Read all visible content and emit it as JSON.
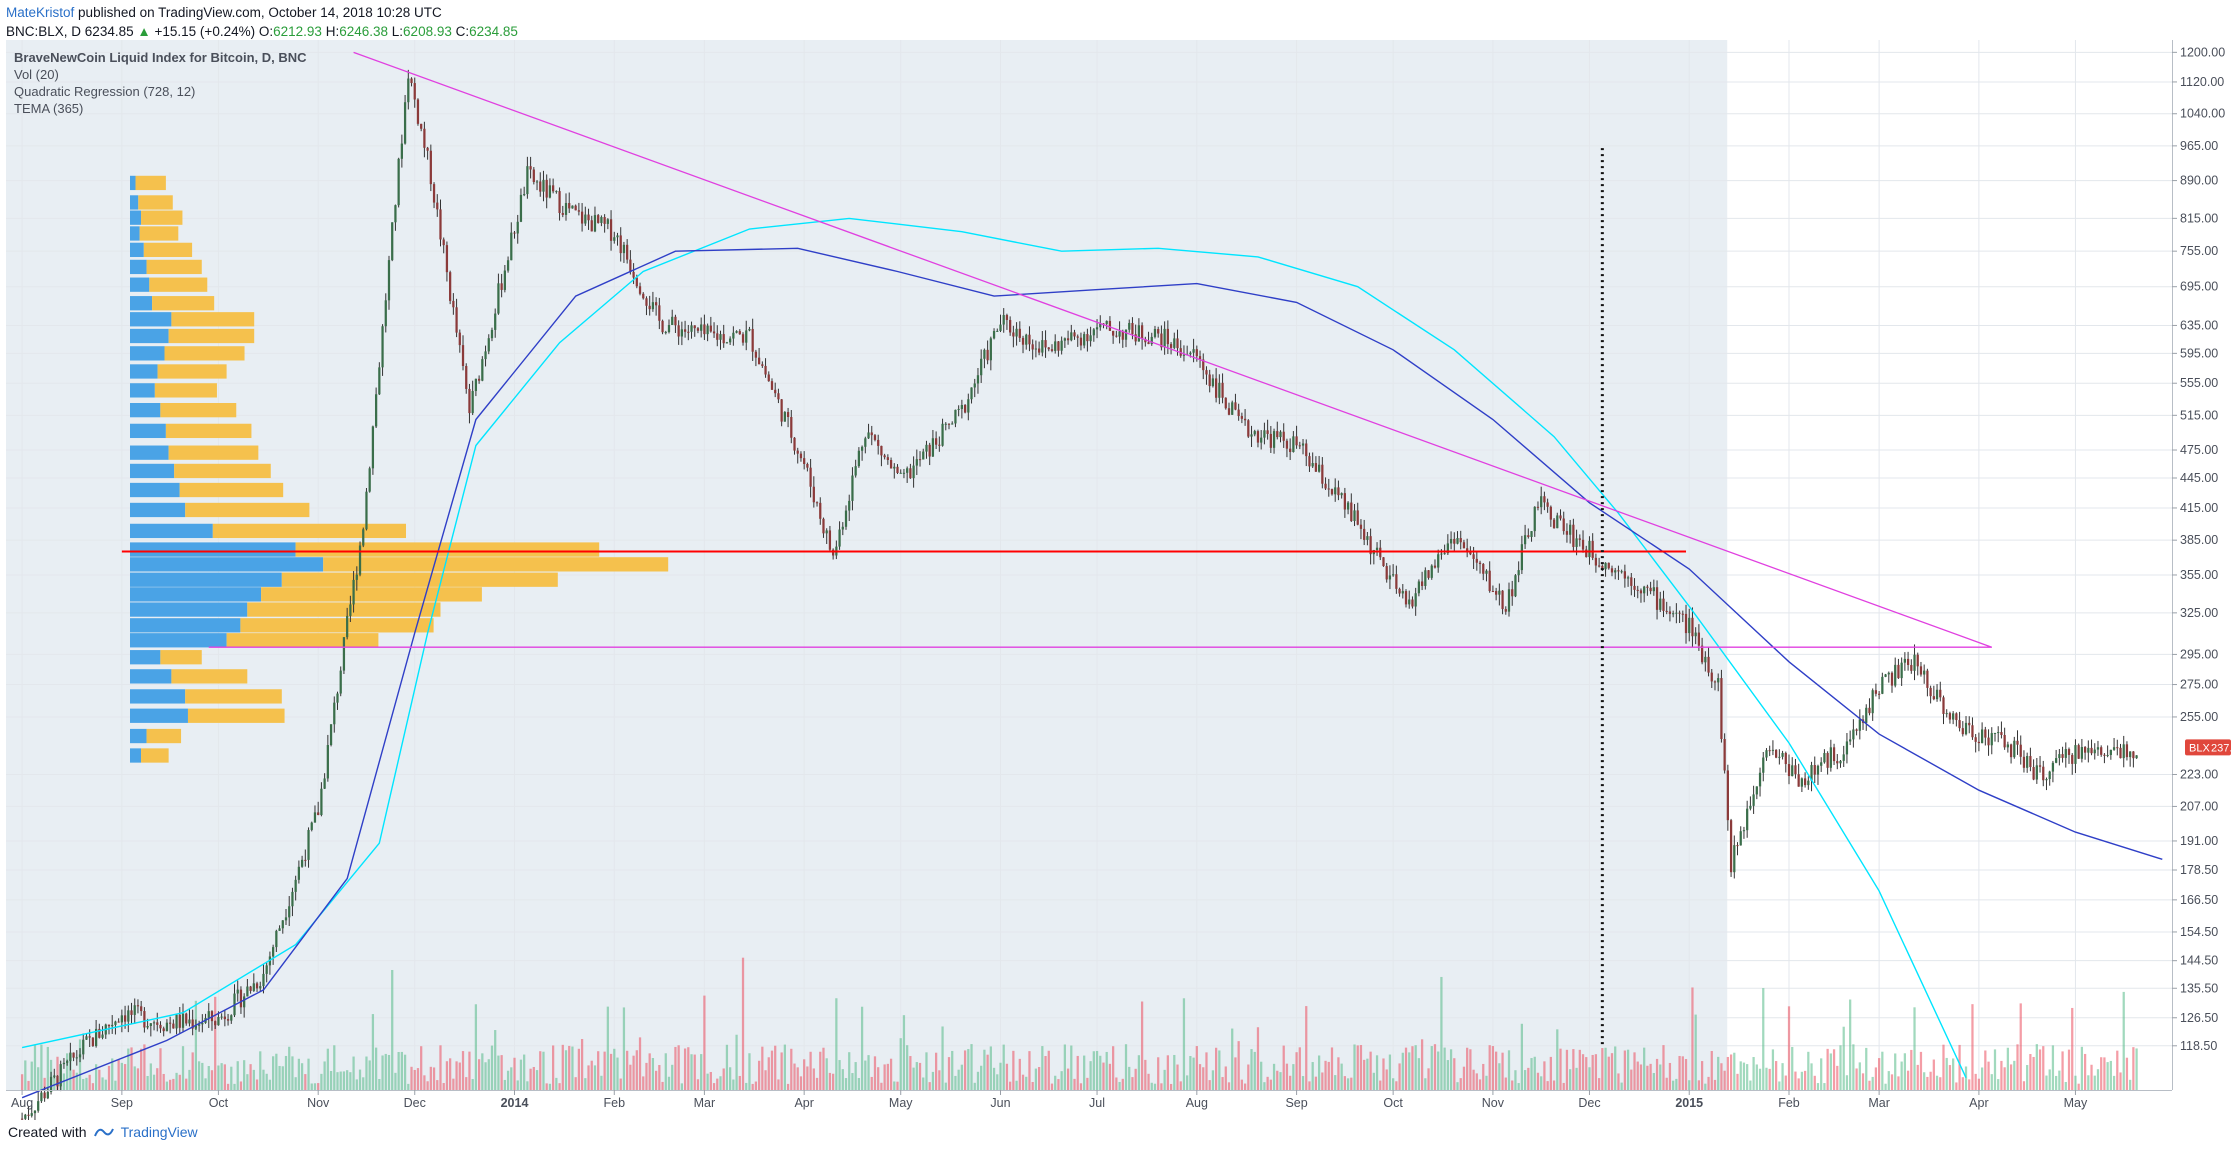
{
  "header": {
    "author": "MateKristof",
    "published": "published on TradingView.com, October 14, 2018 10:28 UTC"
  },
  "ohlc": {
    "symbol": "BNC:BLX, D",
    "last": "6234.85",
    "arrow": "▲",
    "change": "+15.15 (+0.24%)",
    "o_label": "O:",
    "o": "6212.93",
    "h_label": "H:",
    "h": "6246.38",
    "l_label": "L:",
    "l": "6208.93",
    "c_label": "C:",
    "c": "6234.85"
  },
  "footer": {
    "created_with": "Created with",
    "brand": "TradingView"
  },
  "colors": {
    "up": "#53b987",
    "down": "#eb4d5c",
    "candle_up_fill": "#3a6e4a",
    "candle_down_fill": "#8b3a3a",
    "tema": "#00e5ff",
    "regression": "#2f3fc7",
    "trendline": "#e040e0",
    "support": "#ff0000",
    "vp_up": "#4aa3e6",
    "vp_down": "#f5c14d",
    "price_tag": "#e0473c"
  },
  "chart_data": {
    "type": "candlestick",
    "title": "BraveNewCoin Liquid Index for Bitcoin, D, BNC",
    "indicators": [
      "Vol (20)",
      "Quadratic Regression (728, 12)",
      "TEMA (365)"
    ],
    "y_scale": "log",
    "y_ticks": [
      "1200.00",
      "1120.00",
      "1040.00",
      "965.00",
      "890.00",
      "815.00",
      "755.00",
      "695.00",
      "635.00",
      "595.00",
      "555.00",
      "515.00",
      "475.00",
      "445.00",
      "415.00",
      "385.00",
      "355.00",
      "325.00",
      "295.00",
      "275.00",
      "255.00",
      "223.00",
      "207.00",
      "191.00",
      "178.50",
      "166.50",
      "154.50",
      "144.50",
      "135.50",
      "126.50",
      "118.50"
    ],
    "y_tick_values": [
      1200,
      1120,
      1040,
      965,
      890,
      815,
      755,
      695,
      635,
      595,
      555,
      515,
      475,
      445,
      415,
      385,
      355,
      325,
      295,
      275,
      255,
      223,
      207,
      191,
      178.5,
      166.5,
      154.5,
      144.5,
      135.5,
      126.5,
      118.5
    ],
    "x_ticks": [
      {
        "label": "Aug",
        "date": "2013-08-01",
        "bold": false
      },
      {
        "label": "Sep",
        "date": "2013-09-01",
        "bold": false
      },
      {
        "label": "Oct",
        "date": "2013-10-01",
        "bold": false
      },
      {
        "label": "Nov",
        "date": "2013-11-01",
        "bold": false
      },
      {
        "label": "Dec",
        "date": "2013-12-01",
        "bold": false
      },
      {
        "label": "2014",
        "date": "2014-01-01",
        "bold": true
      },
      {
        "label": "Feb",
        "date": "2014-02-01",
        "bold": false
      },
      {
        "label": "Mar",
        "date": "2014-03-01",
        "bold": false
      },
      {
        "label": "Apr",
        "date": "2014-04-01",
        "bold": false
      },
      {
        "label": "May",
        "date": "2014-05-01",
        "bold": false
      },
      {
        "label": "Jun",
        "date": "2014-06-01",
        "bold": false
      },
      {
        "label": "Jul",
        "date": "2014-07-01",
        "bold": false
      },
      {
        "label": "Aug",
        "date": "2014-08-01",
        "bold": false
      },
      {
        "label": "Sep",
        "date": "2014-09-01",
        "bold": false
      },
      {
        "label": "Oct",
        "date": "2014-10-01",
        "bold": false
      },
      {
        "label": "Nov",
        "date": "2014-11-01",
        "bold": false
      },
      {
        "label": "Dec",
        "date": "2014-12-01",
        "bold": false
      },
      {
        "label": "2015",
        "date": "2015-01-01",
        "bold": true
      },
      {
        "label": "Feb",
        "date": "2015-02-01",
        "bold": false
      },
      {
        "label": "Mar",
        "date": "2015-03-01",
        "bold": false
      },
      {
        "label": "Apr",
        "date": "2015-04-01",
        "bold": false
      },
      {
        "label": "May",
        "date": "2015-05-01",
        "bold": false
      }
    ],
    "price_close": [
      {
        "date": "2013-08-01",
        "value": 100
      },
      {
        "date": "2013-08-20",
        "value": 118
      },
      {
        "date": "2013-09-01",
        "value": 128
      },
      {
        "date": "2013-09-15",
        "value": 125
      },
      {
        "date": "2013-10-01",
        "value": 126
      },
      {
        "date": "2013-10-15",
        "value": 140
      },
      {
        "date": "2013-11-01",
        "value": 205
      },
      {
        "date": "2013-11-15",
        "value": 400
      },
      {
        "date": "2013-11-29",
        "value": 1150
      },
      {
        "date": "2013-12-06",
        "value": 900
      },
      {
        "date": "2013-12-18",
        "value": 520
      },
      {
        "date": "2014-01-05",
        "value": 900
      },
      {
        "date": "2014-01-20",
        "value": 820
      },
      {
        "date": "2014-02-01",
        "value": 790
      },
      {
        "date": "2014-02-15",
        "value": 640
      },
      {
        "date": "2014-03-01",
        "value": 620
      },
      {
        "date": "2014-03-15",
        "value": 620
      },
      {
        "date": "2014-04-01",
        "value": 460
      },
      {
        "date": "2014-04-10",
        "value": 370
      },
      {
        "date": "2014-04-20",
        "value": 500
      },
      {
        "date": "2014-05-01",
        "value": 440
      },
      {
        "date": "2014-05-20",
        "value": 520
      },
      {
        "date": "2014-06-01",
        "value": 640
      },
      {
        "date": "2014-06-15",
        "value": 600
      },
      {
        "date": "2014-07-01",
        "value": 630
      },
      {
        "date": "2014-07-20",
        "value": 620
      },
      {
        "date": "2014-08-01",
        "value": 590
      },
      {
        "date": "2014-08-15",
        "value": 500
      },
      {
        "date": "2014-09-01",
        "value": 480
      },
      {
        "date": "2014-09-20",
        "value": 400
      },
      {
        "date": "2014-10-05",
        "value": 330
      },
      {
        "date": "2014-10-20",
        "value": 390
      },
      {
        "date": "2014-11-05",
        "value": 330
      },
      {
        "date": "2014-11-15",
        "value": 420
      },
      {
        "date": "2014-12-01",
        "value": 375
      },
      {
        "date": "2014-12-15",
        "value": 350
      },
      {
        "date": "2015-01-01",
        "value": 315
      },
      {
        "date": "2015-01-10",
        "value": 275
      },
      {
        "date": "2015-01-14",
        "value": 180
      },
      {
        "date": "2015-01-25",
        "value": 240
      },
      {
        "date": "2015-02-05",
        "value": 220
      },
      {
        "date": "2015-02-20",
        "value": 240
      },
      {
        "date": "2015-03-01",
        "value": 275
      },
      {
        "date": "2015-03-12",
        "value": 290
      },
      {
        "date": "2015-03-25",
        "value": 250
      },
      {
        "date": "2015-04-10",
        "value": 240
      },
      {
        "date": "2015-04-20",
        "value": 222
      },
      {
        "date": "2015-05-01",
        "value": 235
      },
      {
        "date": "2015-05-20",
        "value": 237.51
      }
    ],
    "tema_365": [
      {
        "date": "2013-08-01",
        "value": 118
      },
      {
        "date": "2013-09-20",
        "value": 128
      },
      {
        "date": "2013-10-25",
        "value": 150
      },
      {
        "date": "2013-11-20",
        "value": 190
      },
      {
        "date": "2013-12-05",
        "value": 310
      },
      {
        "date": "2013-12-20",
        "value": 480
      },
      {
        "date": "2014-01-15",
        "value": 610
      },
      {
        "date": "2014-02-10",
        "value": 720
      },
      {
        "date": "2014-03-15",
        "value": 795
      },
      {
        "date": "2014-04-15",
        "value": 815
      },
      {
        "date": "2014-05-20",
        "value": 790
      },
      {
        "date": "2014-06-20",
        "value": 755
      },
      {
        "date": "2014-07-20",
        "value": 760
      },
      {
        "date": "2014-08-20",
        "value": 745
      },
      {
        "date": "2014-09-20",
        "value": 695
      },
      {
        "date": "2014-10-20",
        "value": 600
      },
      {
        "date": "2014-11-20",
        "value": 490
      },
      {
        "date": "2014-12-10",
        "value": 410
      },
      {
        "date": "2015-01-01",
        "value": 330
      },
      {
        "date": "2015-02-01",
        "value": 240
      },
      {
        "date": "2015-03-01",
        "value": 170
      },
      {
        "date": "2015-03-28",
        "value": 110
      }
    ],
    "quadratic_regression": [
      {
        "date": "2013-08-01",
        "value": 105
      },
      {
        "date": "2013-09-15",
        "value": 120
      },
      {
        "date": "2013-10-15",
        "value": 135
      },
      {
        "date": "2013-11-10",
        "value": 175
      },
      {
        "date": "2013-12-01",
        "value": 310
      },
      {
        "date": "2013-12-20",
        "value": 510
      },
      {
        "date": "2014-01-20",
        "value": 680
      },
      {
        "date": "2014-02-20",
        "value": 755
      },
      {
        "date": "2014-03-30",
        "value": 760
      },
      {
        "date": "2014-04-30",
        "value": 720
      },
      {
        "date": "2014-05-30",
        "value": 680
      },
      {
        "date": "2014-06-30",
        "value": 690
      },
      {
        "date": "2014-08-01",
        "value": 700
      },
      {
        "date": "2014-09-01",
        "value": 670
      },
      {
        "date": "2014-10-01",
        "value": 600
      },
      {
        "date": "2014-11-01",
        "value": 510
      },
      {
        "date": "2014-12-01",
        "value": 420
      },
      {
        "date": "2015-01-01",
        "value": 360
      },
      {
        "date": "2015-02-01",
        "value": 290
      },
      {
        "date": "2015-03-01",
        "value": 245
      },
      {
        "date": "2015-04-01",
        "value": 215
      },
      {
        "date": "2015-05-01",
        "value": 195
      },
      {
        "date": "2015-05-28",
        "value": 183
      }
    ],
    "trendline_upper": [
      {
        "date": "2013-11-12",
        "value": 1200
      },
      {
        "date": "2015-04-05",
        "value": 300
      }
    ],
    "support_red": {
      "from": "2013-09-01",
      "to": "2014-12-31",
      "value": 375
    },
    "support_magenta": {
      "from": "2013-09-28",
      "to": "2015-04-05",
      "value": 300
    },
    "vertical_marker_date": "2014-12-05",
    "last_price_label": "BLX",
    "last_price": "237.51",
    "volume_profile": [
      {
        "price": 900,
        "up": 4,
        "down": 22
      },
      {
        "price": 860,
        "up": 6,
        "down": 25
      },
      {
        "price": 830,
        "up": 8,
        "down": 30
      },
      {
        "price": 800,
        "up": 7,
        "down": 28
      },
      {
        "price": 770,
        "up": 10,
        "down": 35
      },
      {
        "price": 740,
        "up": 12,
        "down": 40
      },
      {
        "price": 710,
        "up": 14,
        "down": 42
      },
      {
        "price": 680,
        "up": 16,
        "down": 45
      },
      {
        "price": 655,
        "up": 30,
        "down": 60
      },
      {
        "price": 630,
        "up": 28,
        "down": 62
      },
      {
        "price": 605,
        "up": 25,
        "down": 58
      },
      {
        "price": 580,
        "up": 20,
        "down": 50
      },
      {
        "price": 555,
        "up": 18,
        "down": 45
      },
      {
        "price": 530,
        "up": 22,
        "down": 55
      },
      {
        "price": 505,
        "up": 26,
        "down": 62
      },
      {
        "price": 480,
        "up": 28,
        "down": 65
      },
      {
        "price": 460,
        "up": 32,
        "down": 70
      },
      {
        "price": 440,
        "up": 36,
        "down": 75
      },
      {
        "price": 420,
        "up": 40,
        "down": 90
      },
      {
        "price": 400,
        "up": 60,
        "down": 140
      },
      {
        "price": 383,
        "up": 120,
        "down": 220
      },
      {
        "price": 370,
        "up": 140,
        "down": 250
      },
      {
        "price": 357,
        "up": 110,
        "down": 200
      },
      {
        "price": 345,
        "up": 95,
        "down": 160
      },
      {
        "price": 333,
        "up": 85,
        "down": 140
      },
      {
        "price": 321,
        "up": 80,
        "down": 140
      },
      {
        "price": 310,
        "up": 70,
        "down": 110
      },
      {
        "price": 298,
        "up": 22,
        "down": 30
      },
      {
        "price": 285,
        "up": 30,
        "down": 55
      },
      {
        "price": 272,
        "up": 40,
        "down": 70
      },
      {
        "price": 260,
        "up": 42,
        "down": 70
      },
      {
        "price": 248,
        "up": 12,
        "down": 25
      },
      {
        "price": 237,
        "up": 8,
        "down": 20
      }
    ]
  }
}
